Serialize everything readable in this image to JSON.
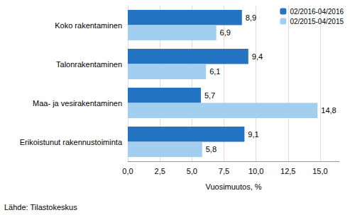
{
  "chart_data": {
    "type": "bar",
    "orientation": "horizontal",
    "categories": [
      "Koko rakentaminen",
      "Talonrakentaminen",
      "Maa- ja vesirakentaminen",
      "Erikoistunut rakennustoiminta"
    ],
    "series": [
      {
        "name": "02/2016-04/2016",
        "color": "#2474c4",
        "values": [
          8.9,
          9.4,
          5.7,
          9.1
        ],
        "value_labels": [
          "8,9",
          "9,4",
          "5,7",
          "9,1"
        ]
      },
      {
        "name": "02/2015-04/2015",
        "color": "#a2cef0",
        "values": [
          6.9,
          6.1,
          14.8,
          5.8
        ],
        "value_labels": [
          "6,9",
          "6,1",
          "14,8",
          "5,8"
        ]
      }
    ],
    "xlabel": "Vuosimuutos, %",
    "xlim": [
      0,
      16.5
    ],
    "xticks": [
      {
        "value": 0,
        "label": "0,0"
      },
      {
        "value": 2.5,
        "label": "2,5"
      },
      {
        "value": 5,
        "label": "5,0"
      },
      {
        "value": 7.5,
        "label": "7,5"
      },
      {
        "value": 10,
        "label": "10,0"
      },
      {
        "value": 12.5,
        "label": "12,5"
      },
      {
        "value": 15,
        "label": "15,0"
      }
    ],
    "grid": true,
    "legend": "top-right",
    "data_labels": true,
    "annotations": [
      "Lähde: Tilastokeskus"
    ]
  }
}
